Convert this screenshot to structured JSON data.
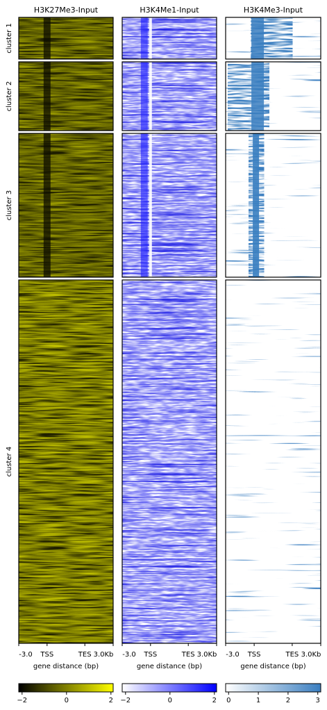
{
  "chart_data": {
    "type": "heatmap",
    "clusters": [
      "cluster 1",
      "cluster 2",
      "cluster 3",
      "cluster 4"
    ],
    "xtick_labels": [
      "-3.0",
      "TSS",
      "TES",
      "3.0Kb"
    ],
    "xlabel": "gene distance (bp)",
    "samples": [
      {
        "title": "H3K27Me3-Input",
        "colormap": [
          "#000000",
          "#ffff00"
        ],
        "colorbar_lim": [
          -2.15,
          2.1
        ],
        "colorbar_ticks": [
          {
            "value": -2,
            "label": "−2"
          },
          0,
          2
        ]
      },
      {
        "title": "H3K4Me1-Input",
        "colormap": [
          "#ffffff",
          "#0000ff"
        ],
        "colorbar_lim": [
          -2.15,
          2.1
        ],
        "colorbar_ticks": [
          {
            "value": -2,
            "label": "−2"
          },
          0,
          2
        ]
      },
      {
        "title": "H3K4Me3-Input",
        "colormap": [
          "#ffffff",
          "#3a7ec0"
        ],
        "colorbar_lim": [
          -0.1,
          3.1
        ],
        "colorbar_ticks": [
          0,
          1,
          2,
          3
        ]
      }
    ]
  }
}
